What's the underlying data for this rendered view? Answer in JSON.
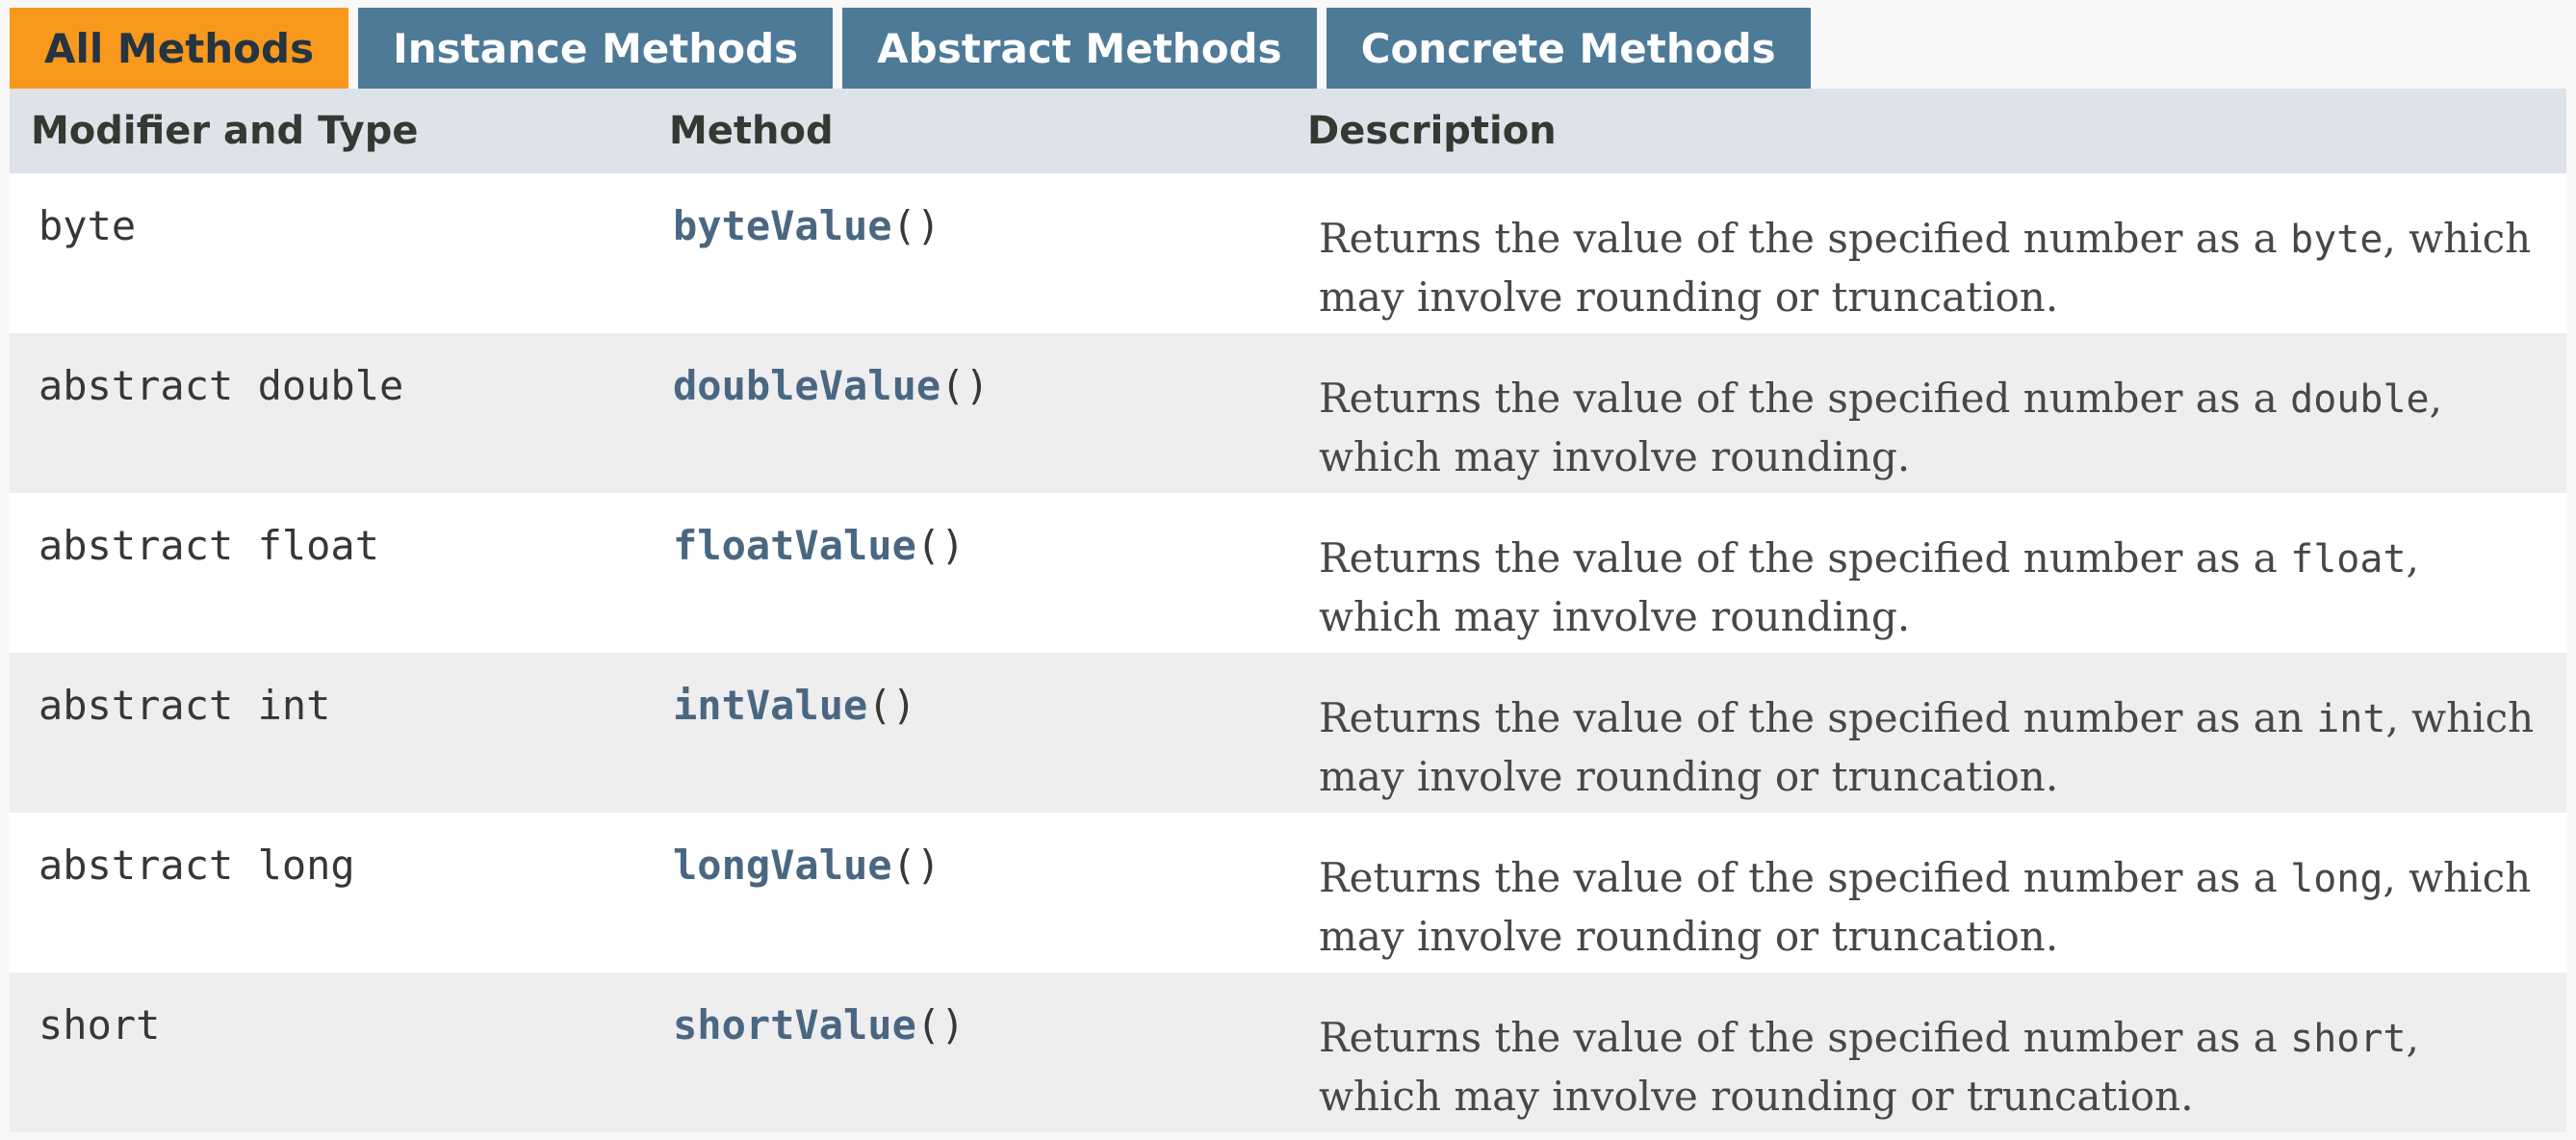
{
  "tabs": [
    {
      "label": "All Methods",
      "active": true
    },
    {
      "label": "Instance Methods",
      "active": false
    },
    {
      "label": "Abstract Methods",
      "active": false
    },
    {
      "label": "Concrete Methods",
      "active": false
    }
  ],
  "columns": {
    "modifier": "Modifier and Type",
    "method": "Method",
    "description": "Description"
  },
  "rows": [
    {
      "modifier": "byte",
      "method_name": "byteValue",
      "params": "()",
      "desc_pre": "Returns the value of the specified number as a ",
      "desc_code": "byte",
      "desc_post": ", which may involve rounding or truncation."
    },
    {
      "modifier": "abstract double",
      "method_name": "doubleValue",
      "params": "()",
      "desc_pre": "Returns the value of the specified number as a ",
      "desc_code": "double",
      "desc_post": ", which may involve rounding."
    },
    {
      "modifier": "abstract float",
      "method_name": "floatValue",
      "params": "()",
      "desc_pre": "Returns the value of the specified number as a ",
      "desc_code": "float",
      "desc_post": ", which may involve rounding."
    },
    {
      "modifier": "abstract int",
      "method_name": "intValue",
      "params": "()",
      "desc_pre": "Returns the value of the specified number as an ",
      "desc_code": "int",
      "desc_post": ", which may involve rounding or truncation."
    },
    {
      "modifier": "abstract long",
      "method_name": "longValue",
      "params": "()",
      "desc_pre": "Returns the value of the specified number as a ",
      "desc_code": "long",
      "desc_post": ", which may involve rounding or truncation."
    },
    {
      "modifier": "short",
      "method_name": "shortValue",
      "params": "()",
      "desc_pre": "Returns the value of the specified number as a ",
      "desc_code": "short",
      "desc_post": ", which may involve rounding or truncation."
    }
  ],
  "colors": {
    "tab_active_bg": "#f8981d",
    "tab_inactive_bg": "#4d7a97",
    "header_bg": "#dee3e9",
    "row_even_bg": "#ffffff",
    "row_odd_bg": "#eeeeef",
    "method_link": "#4a6782"
  }
}
